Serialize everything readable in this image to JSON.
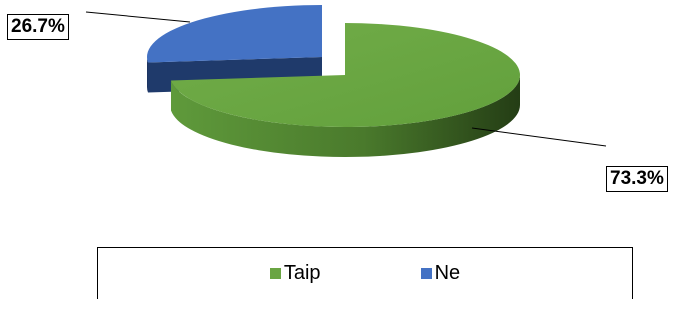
{
  "chart_data": {
    "type": "pie",
    "style": "3d-exploded",
    "categories": [
      "Taip",
      "Ne"
    ],
    "values": [
      73.3,
      26.7
    ],
    "labels": [
      "73.3%",
      "26.7%"
    ],
    "colors": [
      "#6aa543",
      "#4472c4"
    ],
    "legend_position": "bottom"
  }
}
